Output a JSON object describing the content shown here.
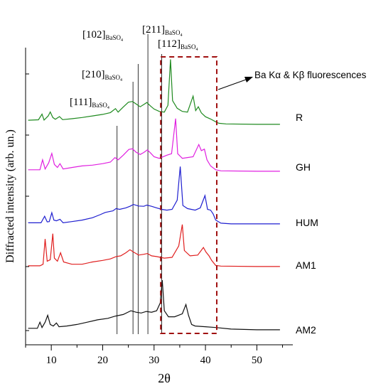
{
  "chart_data": {
    "type": "line",
    "title": "",
    "xlabel": "2θ",
    "ylabel": "Diffracted intensity (arb. un.)",
    "xlim": [
      5,
      57
    ],
    "x_ticks": [
      "10",
      "20",
      "30",
      "40",
      "50"
    ],
    "grid": false,
    "legend": "none",
    "series": [
      {
        "name": "R",
        "color": "#1f8a1f",
        "points": [
          [
            5.5,
            0.32
          ],
          [
            7.5,
            0.35
          ],
          [
            8.2,
            0.72
          ],
          [
            8.6,
            0.33
          ],
          [
            9.4,
            0.6
          ],
          [
            9.8,
            0.86
          ],
          [
            10.3,
            0.5
          ],
          [
            10.8,
            0.38
          ],
          [
            11.6,
            0.56
          ],
          [
            12.2,
            0.36
          ],
          [
            14,
            0.42
          ],
          [
            16,
            0.5
          ],
          [
            18,
            0.6
          ],
          [
            20,
            0.7
          ],
          [
            21.5,
            0.82
          ],
          [
            22.5,
            1.08
          ],
          [
            23,
            0.85
          ],
          [
            24,
            1.18
          ],
          [
            25,
            1.5
          ],
          [
            25.8,
            1.55
          ],
          [
            26.5,
            1.38
          ],
          [
            27.3,
            1.2
          ],
          [
            28,
            1.35
          ],
          [
            28.6,
            1.48
          ],
          [
            29.3,
            1.25
          ],
          [
            30,
            1.05
          ],
          [
            31,
            0.9
          ],
          [
            32,
            0.85
          ],
          [
            32.7,
            1.3
          ],
          [
            33.2,
            4.3
          ],
          [
            33.6,
            1.6
          ],
          [
            34.5,
            1.1
          ],
          [
            35.5,
            0.9
          ],
          [
            36.5,
            0.85
          ],
          [
            37.6,
            1.9
          ],
          [
            38.1,
            0.95
          ],
          [
            38.6,
            1.2
          ],
          [
            39.2,
            0.8
          ],
          [
            40,
            0.55
          ],
          [
            41,
            0.4
          ],
          [
            42,
            0.22
          ],
          [
            42.6,
            0.12
          ],
          [
            44,
            0.08
          ],
          [
            50,
            0.05
          ],
          [
            54.5,
            0.05
          ]
        ]
      },
      {
        "name": "GH",
        "color": "#e020e0",
        "points": [
          [
            5.5,
            0.15
          ],
          [
            7.8,
            0.15
          ],
          [
            8.3,
            0.8
          ],
          [
            8.8,
            0.2
          ],
          [
            9.5,
            0.6
          ],
          [
            10.1,
            1.22
          ],
          [
            10.6,
            0.5
          ],
          [
            11.2,
            0.3
          ],
          [
            11.7,
            0.55
          ],
          [
            12.3,
            0.2
          ],
          [
            14,
            0.3
          ],
          [
            16,
            0.4
          ],
          [
            18,
            0.45
          ],
          [
            20,
            0.55
          ],
          [
            21.5,
            0.65
          ],
          [
            22.4,
            0.95
          ],
          [
            23,
            0.8
          ],
          [
            24,
            1.1
          ],
          [
            25.1,
            1.48
          ],
          [
            25.8,
            1.52
          ],
          [
            26.5,
            1.3
          ],
          [
            27.3,
            1.15
          ],
          [
            28,
            1.28
          ],
          [
            28.7,
            1.45
          ],
          [
            29.3,
            1.25
          ],
          [
            30,
            1.0
          ],
          [
            31,
            0.9
          ],
          [
            32.5,
            1.1
          ],
          [
            33.4,
            1.2
          ],
          [
            34.2,
            3.5
          ],
          [
            34.6,
            1.2
          ],
          [
            35.5,
            0.9
          ],
          [
            36.5,
            0.95
          ],
          [
            37.6,
            1.0
          ],
          [
            38.7,
            1.8
          ],
          [
            39.2,
            1.4
          ],
          [
            39.8,
            1.5
          ],
          [
            40.3,
            0.8
          ],
          [
            41,
            0.4
          ],
          [
            42,
            0.15
          ],
          [
            43,
            0.08
          ],
          [
            50,
            0.05
          ],
          [
            54.5,
            0.05
          ]
        ]
      },
      {
        "name": "HUM",
        "color": "#1f1fd0",
        "points": [
          [
            5.5,
            0.12
          ],
          [
            8,
            0.12
          ],
          [
            8.7,
            0.55
          ],
          [
            9.2,
            0.18
          ],
          [
            9.6,
            0.2
          ],
          [
            10.1,
            0.78
          ],
          [
            10.5,
            0.3
          ],
          [
            11,
            0.25
          ],
          [
            11.7,
            0.35
          ],
          [
            12.3,
            0.12
          ],
          [
            14,
            0.2
          ],
          [
            16,
            0.3
          ],
          [
            18,
            0.45
          ],
          [
            19.5,
            0.65
          ],
          [
            20.5,
            0.8
          ],
          [
            22,
            0.9
          ],
          [
            22.6,
            1.05
          ],
          [
            23.3,
            1.0
          ],
          [
            24.5,
            1.1
          ],
          [
            25.3,
            1.2
          ],
          [
            26,
            1.32
          ],
          [
            27,
            1.22
          ],
          [
            28,
            1.2
          ],
          [
            28.6,
            1.28
          ],
          [
            29.5,
            1.2
          ],
          [
            30.5,
            1.1
          ],
          [
            31.5,
            1.0
          ],
          [
            32.5,
            0.95
          ],
          [
            33.5,
            1.0
          ],
          [
            34.5,
            1.6
          ],
          [
            35.1,
            3.8
          ],
          [
            35.6,
            1.25
          ],
          [
            36.5,
            1.05
          ],
          [
            38,
            0.95
          ],
          [
            39,
            1.1
          ],
          [
            39.9,
            1.9
          ],
          [
            40.4,
            1.0
          ],
          [
            41,
            0.95
          ],
          [
            41.5,
            0.7
          ],
          [
            42,
            0.3
          ],
          [
            43,
            0.1
          ],
          [
            45,
            0.05
          ],
          [
            54.5,
            0.05
          ]
        ]
      },
      {
        "name": "AM1",
        "color": "#e01f1f",
        "points": [
          [
            5.5,
            0.1
          ],
          [
            7.8,
            0.1
          ],
          [
            8.4,
            0.2
          ],
          [
            8.8,
            1.85
          ],
          [
            9.2,
            0.4
          ],
          [
            9.8,
            0.5
          ],
          [
            10.3,
            2.2
          ],
          [
            10.6,
            0.6
          ],
          [
            11.2,
            0.4
          ],
          [
            11.8,
            0.95
          ],
          [
            12.4,
            0.35
          ],
          [
            14,
            0.2
          ],
          [
            16,
            0.2
          ],
          [
            18,
            0.35
          ],
          [
            20,
            0.45
          ],
          [
            21.5,
            0.55
          ],
          [
            22.6,
            0.7
          ],
          [
            23.5,
            0.75
          ],
          [
            24.5,
            0.95
          ],
          [
            25.3,
            1.15
          ],
          [
            26,
            1.0
          ],
          [
            27,
            0.8
          ],
          [
            28,
            0.85
          ],
          [
            28.7,
            0.9
          ],
          [
            29.5,
            0.75
          ],
          [
            30.5,
            0.7
          ],
          [
            32,
            0.6
          ],
          [
            33.5,
            0.65
          ],
          [
            34.8,
            1.4
          ],
          [
            35.5,
            2.8
          ],
          [
            35.9,
            1.1
          ],
          [
            37,
            0.75
          ],
          [
            38.5,
            0.8
          ],
          [
            39.6,
            1.3
          ],
          [
            40.1,
            1.0
          ],
          [
            40.7,
            0.75
          ],
          [
            41.2,
            0.45
          ],
          [
            42,
            0.12
          ],
          [
            43,
            0.08
          ],
          [
            50,
            0.05
          ],
          [
            54.5,
            0.05
          ]
        ]
      },
      {
        "name": "AM2",
        "color": "#111111",
        "points": [
          [
            5.5,
            0.15
          ],
          [
            7.3,
            0.15
          ],
          [
            7.8,
            0.55
          ],
          [
            8.2,
            0.2
          ],
          [
            8.8,
            0.55
          ],
          [
            9.3,
            1.0
          ],
          [
            9.8,
            0.4
          ],
          [
            10.4,
            0.3
          ],
          [
            11,
            0.5
          ],
          [
            11.5,
            0.25
          ],
          [
            13,
            0.3
          ],
          [
            15,
            0.4
          ],
          [
            17,
            0.55
          ],
          [
            19,
            0.7
          ],
          [
            21,
            0.8
          ],
          [
            22.5,
            0.95
          ],
          [
            24,
            1.05
          ],
          [
            25.5,
            1.3
          ],
          [
            26.5,
            1.2
          ],
          [
            27.5,
            1.15
          ],
          [
            28.5,
            1.25
          ],
          [
            29.5,
            1.2
          ],
          [
            30.5,
            1.3
          ],
          [
            31.2,
            1.8
          ],
          [
            31.6,
            3.3
          ],
          [
            32,
            1.3
          ],
          [
            32.8,
            0.9
          ],
          [
            34,
            0.9
          ],
          [
            35.5,
            1.1
          ],
          [
            36.2,
            1.7
          ],
          [
            36.7,
            1.0
          ],
          [
            37.3,
            0.4
          ],
          [
            38,
            0.3
          ],
          [
            40,
            0.25
          ],
          [
            42,
            0.2
          ],
          [
            45,
            0.1
          ],
          [
            50,
            0.05
          ],
          [
            54.5,
            0.05
          ]
        ]
      }
    ],
    "reference_lines": [
      {
        "label": "[111]",
        "subscript": "BaSO",
        "x": 22.8
      },
      {
        "label": "[210]",
        "subscript": "BaSO",
        "x": 25.9
      },
      {
        "label": "[102]",
        "subscript": "BaSO",
        "x": 26.9
      },
      {
        "label": "[211]",
        "subscript": "BaSO",
        "x": 28.8
      },
      {
        "label": "[112]",
        "subscript": "BaSO",
        "x": 31.5
      }
    ],
    "highlight_region": {
      "x_range": [
        31.3,
        42.2
      ],
      "color": "#a01010"
    },
    "annotation": {
      "text": "Ba Kα & Kβ fluorescences"
    }
  }
}
